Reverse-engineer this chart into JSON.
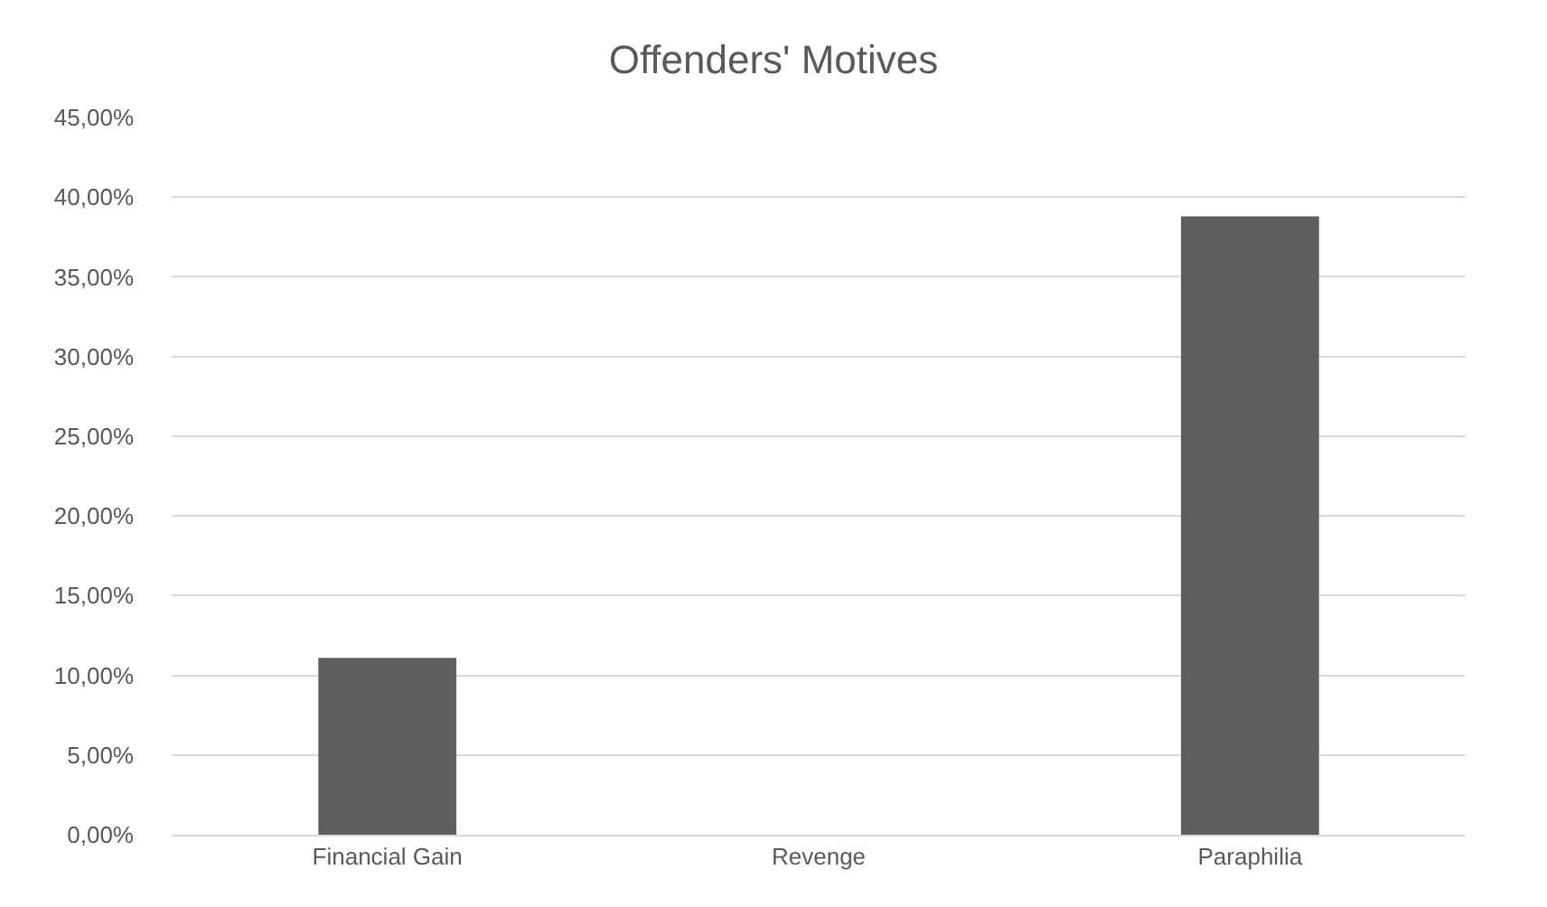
{
  "chart_data": {
    "type": "bar",
    "title": "Offenders' Motives",
    "categories": [
      "Financial Gain",
      "Revenge",
      "Paraphilia"
    ],
    "values": [
      11.1,
      0,
      38.8
    ],
    "color": "#5e5e5e",
    "ylim": [
      0,
      45
    ],
    "yticks": [
      {
        "value": 0,
        "label": "0,00%"
      },
      {
        "value": 5,
        "label": "5,00%"
      },
      {
        "value": 10,
        "label": "10,00%"
      },
      {
        "value": 15,
        "label": "15,00%"
      },
      {
        "value": 20,
        "label": "20,00%"
      },
      {
        "value": 25,
        "label": "25,00%"
      },
      {
        "value": 30,
        "label": "30,00%"
      },
      {
        "value": 35,
        "label": "35,00%"
      },
      {
        "value": 40,
        "label": "40,00%"
      },
      {
        "value": 45,
        "label": "45,00%"
      }
    ],
    "grid": "y"
  }
}
